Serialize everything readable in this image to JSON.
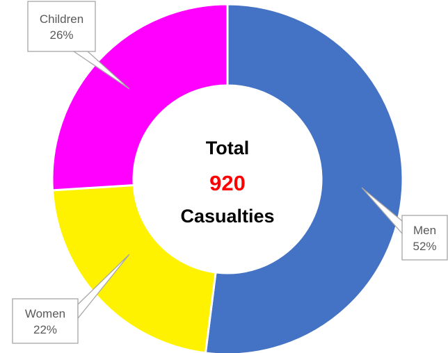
{
  "chart_data": {
    "type": "pie",
    "variant": "donut",
    "categories": [
      "Men",
      "Women",
      "Children"
    ],
    "values": [
      52,
      22,
      26
    ],
    "value_suffix": "%",
    "colors": [
      "#4472C4",
      "#FFF200",
      "#FF00FF"
    ],
    "labels": [
      {
        "name": "Men",
        "value": "52%"
      },
      {
        "name": "Women",
        "value": "22%"
      },
      {
        "name": "Children",
        "value": "26%"
      }
    ],
    "center": {
      "line1": "Total",
      "value": "920",
      "value_color": "#FF0000",
      "line3": "Casualties"
    }
  }
}
